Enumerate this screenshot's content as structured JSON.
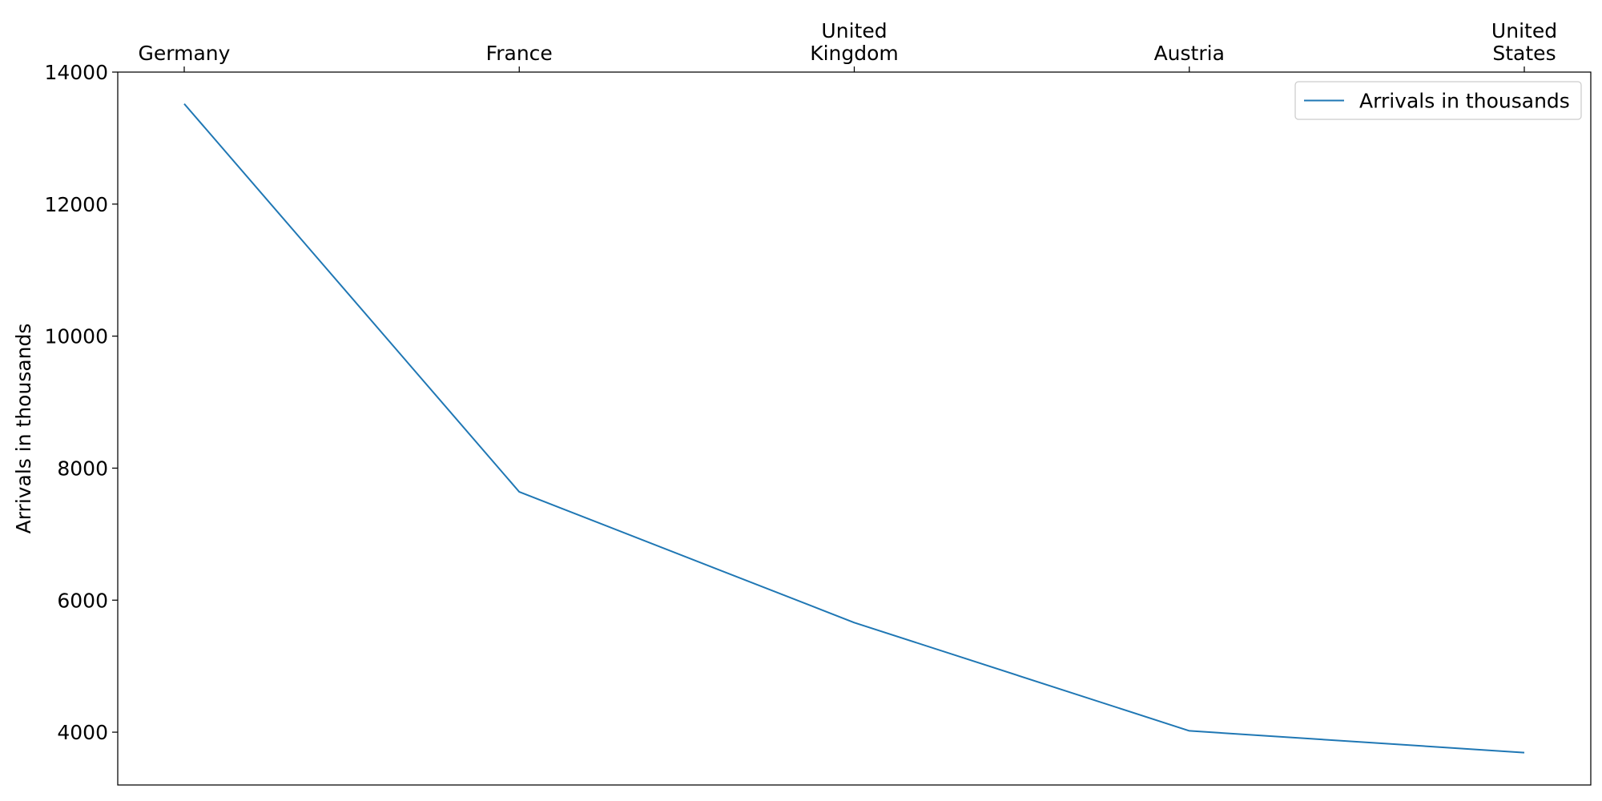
{
  "chart_data": {
    "type": "line",
    "title": "",
    "xlabel": "",
    "ylabel": "Arrivals in thousands",
    "x_axis_position": "top",
    "categories": [
      [
        "Germany"
      ],
      [
        "France"
      ],
      [
        "United",
        "Kingdom"
      ],
      [
        "Austria"
      ],
      [
        "United",
        "States"
      ]
    ],
    "series": [
      {
        "name": "Arrivals in thousands",
        "color": "#1f77b4",
        "values": [
          13520,
          7640,
          5660,
          4020,
          3690
        ]
      }
    ],
    "ylim": [
      3200,
      14000
    ],
    "yticks": [
      4000,
      6000,
      8000,
      10000,
      12000,
      14000
    ],
    "ytick_labels": [
      "4000",
      "6000",
      "8000",
      "10000",
      "12000",
      "14000"
    ],
    "grid": false,
    "legend": "top-right"
  }
}
